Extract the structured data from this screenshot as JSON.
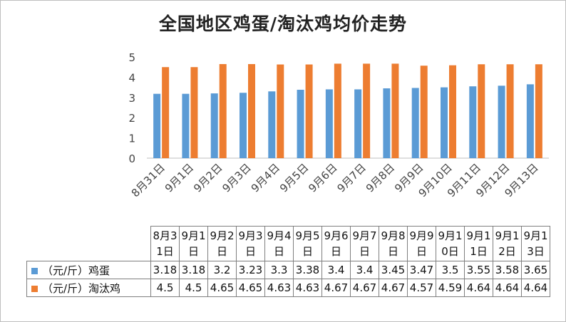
{
  "chart_data": {
    "type": "bar",
    "title": "全国地区鸡蛋/淘汰鸡均价走势",
    "categories": [
      "8月31日",
      "9月1日",
      "9月2日",
      "9月3日",
      "9月4日",
      "9月5日",
      "9月6日",
      "9月7日",
      "9月8日",
      "9月9日",
      "9月10日",
      "9月11日",
      "9月12日",
      "9月13日"
    ],
    "series": [
      {
        "name": "（元/斤）鸡蛋",
        "color": "#5b9bd5",
        "values": [
          3.18,
          3.18,
          3.2,
          3.23,
          3.3,
          3.38,
          3.4,
          3.4,
          3.45,
          3.47,
          3.5,
          3.55,
          3.58,
          3.65
        ]
      },
      {
        "name": "（元/斤）淘汰鸡",
        "color": "#ed7d31",
        "values": [
          4.5,
          4.5,
          4.65,
          4.65,
          4.63,
          4.63,
          4.67,
          4.67,
          4.67,
          4.57,
          4.59,
          4.64,
          4.64,
          4.64
        ]
      }
    ],
    "table_values": [
      [
        "3.18",
        "3.18",
        "3.2",
        "3.23",
        "3.3",
        "3.38",
        "3.4",
        "3.4",
        "3.45",
        "3.47",
        "3.5",
        "3.55",
        "3.58",
        "3.65"
      ],
      [
        "4.5",
        "4.5",
        "4.65",
        "4.65",
        "4.63",
        "4.63",
        "4.67",
        "4.67",
        "4.67",
        "4.57",
        "4.59",
        "4.64",
        "4.64",
        "4.64"
      ]
    ],
    "yticks": [
      "0",
      "1",
      "2",
      "3",
      "4",
      "5"
    ],
    "ylim": [
      0,
      5
    ],
    "grid": false,
    "legend": "data-table"
  }
}
